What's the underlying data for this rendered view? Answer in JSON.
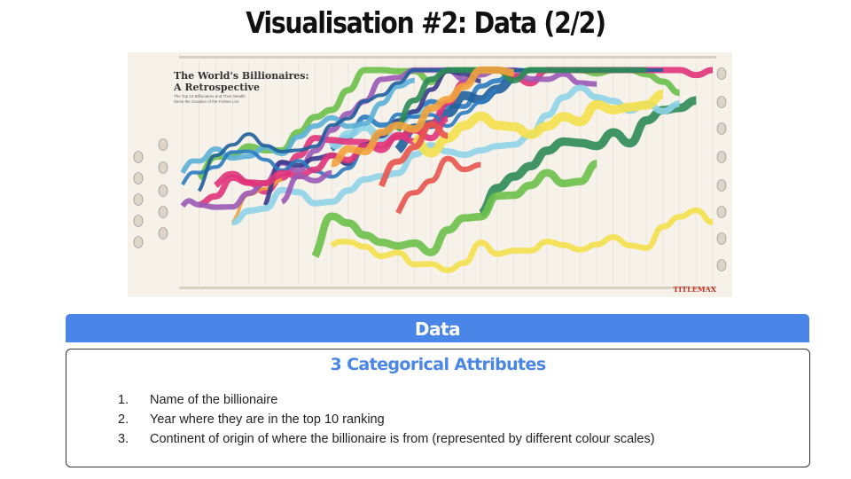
{
  "slide": {
    "title": "Visualisation #2: Data (2/2)"
  },
  "infographic": {
    "title_line1": "The World's Billionaires:",
    "title_line2": "A Retrospective",
    "subtitle": "The Top 10 Billionaires and Their Wealth Since the Creation of the Forbes List",
    "brand": "TITLEMAX",
    "colors": {
      "north_america": "#2a7bc0",
      "europe": "#6cc04a",
      "asia": "#e0337a",
      "latin_america": "#f2a23b",
      "middle_east": "#9b59b6",
      "background": "#f6f2ea"
    }
  },
  "data_section": {
    "header": "Data",
    "box_title": "3 Categorical Attributes",
    "items": [
      {
        "number": "1.",
        "text": "Name of the billionaire"
      },
      {
        "number": "2.",
        "text": "Year where they are in the top 10 ranking"
      },
      {
        "number": "3.",
        "text": "Continent of origin of where the billionaire is from (represented by different colour scales)"
      }
    ]
  }
}
